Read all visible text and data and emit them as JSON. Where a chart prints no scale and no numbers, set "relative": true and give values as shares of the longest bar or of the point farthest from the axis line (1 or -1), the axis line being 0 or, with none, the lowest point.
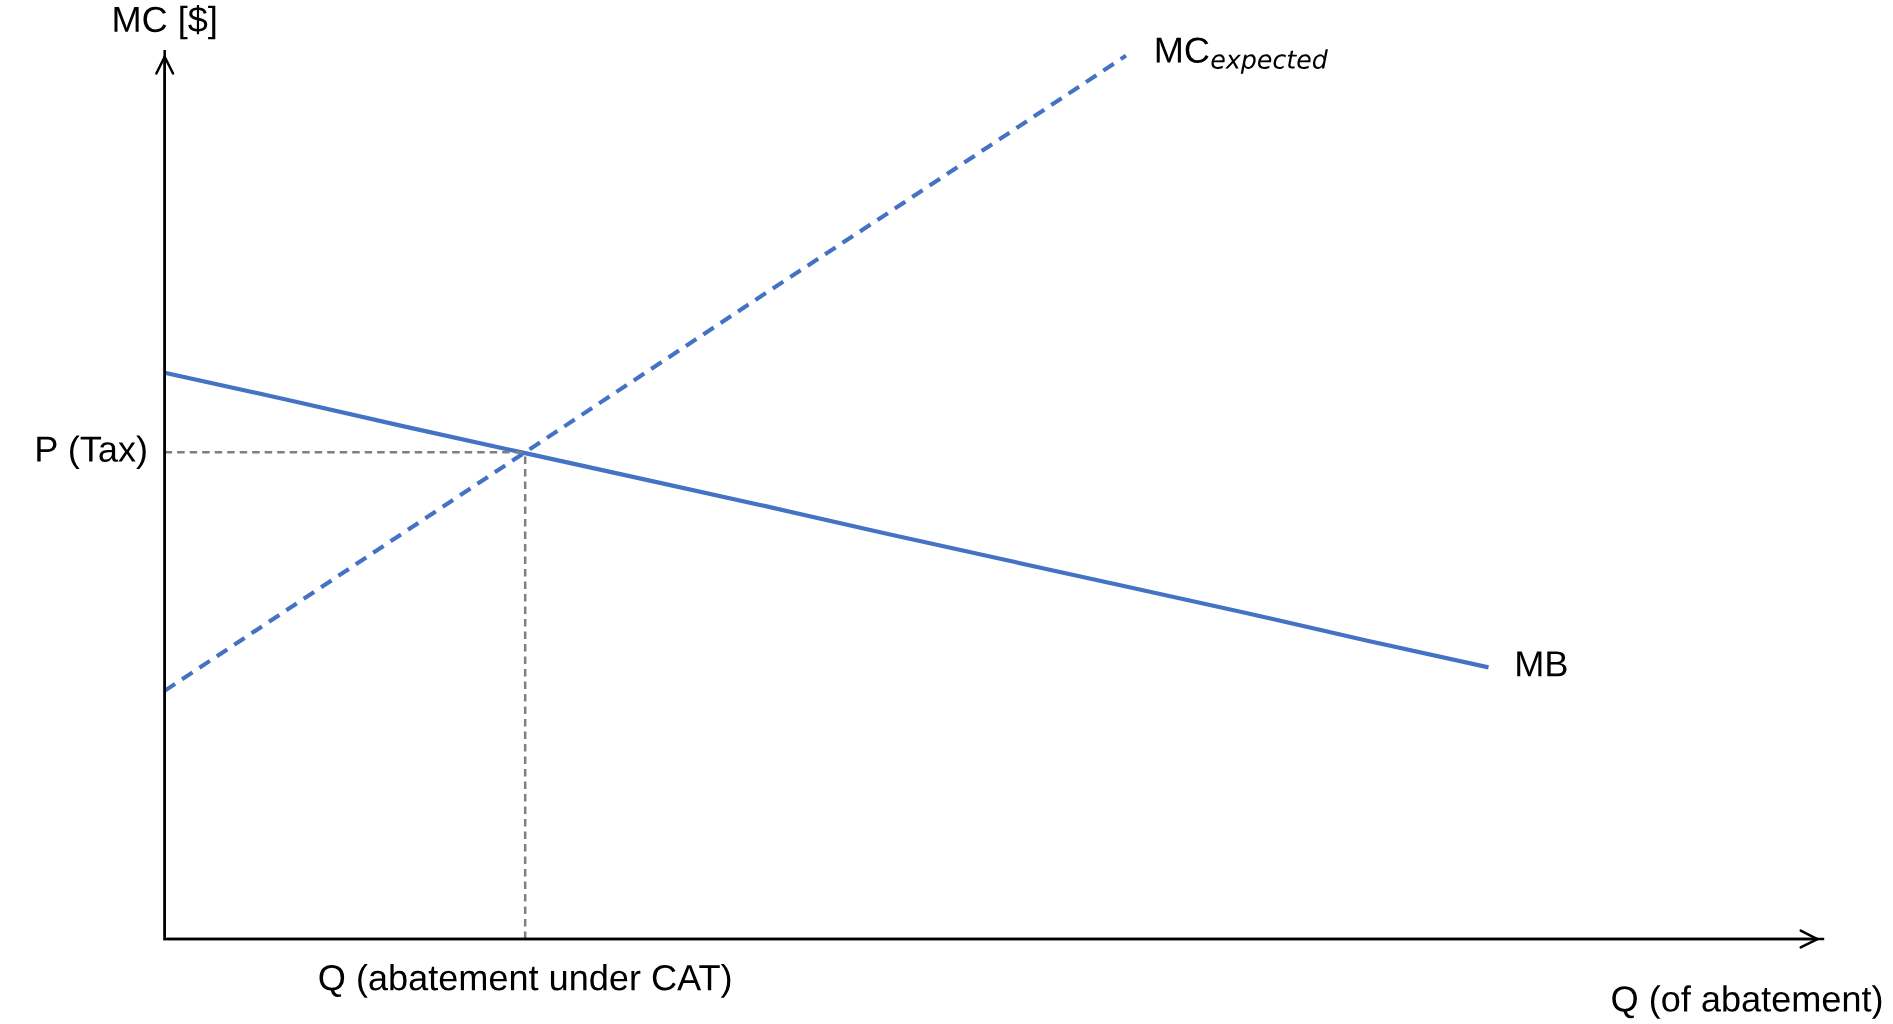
{
  "chart_data": {
    "type": "line",
    "relative": true,
    "xlabel": "Q (of abatement)",
    "ylabel": "MC [$]",
    "categories": [
      null,
      null,
      null,
      null,
      null,
      null,
      null,
      null,
      null,
      null,
      null,
      null,
      null,
      null
    ],
    "series": [
      {
        "name": "MC$_{expected}$",
        "color": "#4472c4",
        "line_style": "dashed",
        "values": [
          0.281,
          0.371,
          0.461,
          0.551,
          0.641,
          0.731,
          0.82,
          0.91,
          1.0,
          null,
          null,
          null,
          null,
          null
        ]
      },
      {
        "name": "MB",
        "color": "#4472c4",
        "line_style": "solid",
        "values": [
          0.641,
          0.611,
          0.58,
          0.55,
          0.52,
          0.49,
          0.459,
          0.429,
          0.399,
          0.369,
          0.338,
          0.308,
          null,
          null
        ]
      }
    ],
    "ref_lines": [
      {
        "axis": "y",
        "value": 0.551,
        "label": "P (Tax)",
        "color": "#7f7f7f",
        "line_style": "dashed"
      }
    ],
    "annotations": [
      "Q (abatement under CAT)"
    ],
    "grid": false,
    "legend": false
  }
}
